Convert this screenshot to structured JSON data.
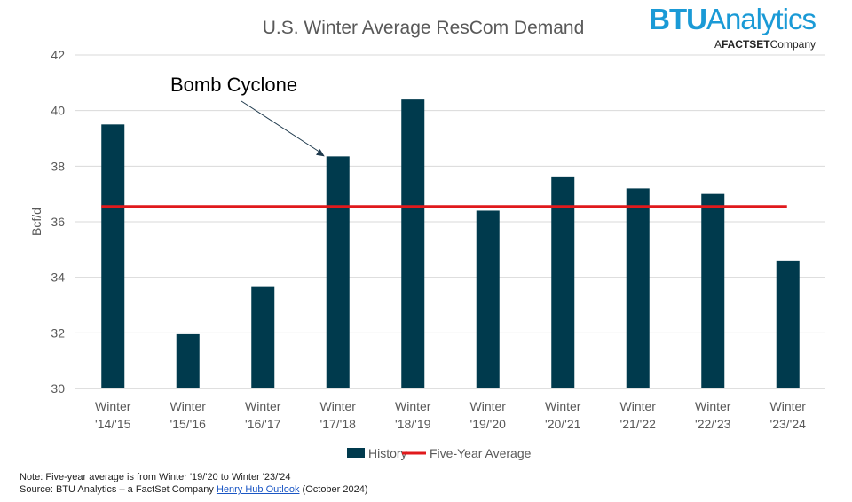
{
  "brand": {
    "name_bold": "BTU",
    "name_rest": "Analytics",
    "tagline_prefix": "A",
    "tagline_bold": "FACTSET",
    "tagline_suffix": "Company",
    "color": "#1a9ad6"
  },
  "notes": {
    "line1": "Note: Five-year average is from Winter '19/'20 to Winter '23/'24",
    "source_prefix": "Source: BTU Analytics – a FactSet Company ",
    "source_link": "Henry Hub Outlook",
    "source_suffix": " (October 2024)"
  },
  "chart_data": {
    "type": "bar",
    "title": "U.S. Winter Average ResCom Demand",
    "xlabel": "",
    "ylabel": "Bcf/d",
    "ylim": [
      30,
      42
    ],
    "yticks": [
      30,
      32,
      34,
      36,
      38,
      40,
      42
    ],
    "grid": true,
    "legend_position": "bottom",
    "categories": [
      [
        "Winter",
        "'14/'15"
      ],
      [
        "Winter",
        "'15/'16"
      ],
      [
        "Winter",
        "'16/'17"
      ],
      [
        "Winter",
        "'17/'18"
      ],
      [
        "Winter",
        "'18/'19"
      ],
      [
        "Winter",
        "'19/'20"
      ],
      [
        "Winter",
        "'20/'21"
      ],
      [
        "Winter",
        "'21/'22"
      ],
      [
        "Winter",
        "'22/'23"
      ],
      [
        "Winter",
        "'23/'24"
      ]
    ],
    "series": [
      {
        "name": "History",
        "type": "bar",
        "color": "#003a4d",
        "values": [
          39.5,
          31.95,
          33.65,
          38.35,
          40.4,
          36.4,
          37.6,
          37.2,
          37.0,
          34.6
        ]
      },
      {
        "name": "Five-Year Average",
        "type": "line",
        "color": "#e0191c",
        "value": 36.55
      }
    ],
    "annotation": {
      "text": "Bomb Cyclone",
      "target_category_index": 3
    }
  }
}
